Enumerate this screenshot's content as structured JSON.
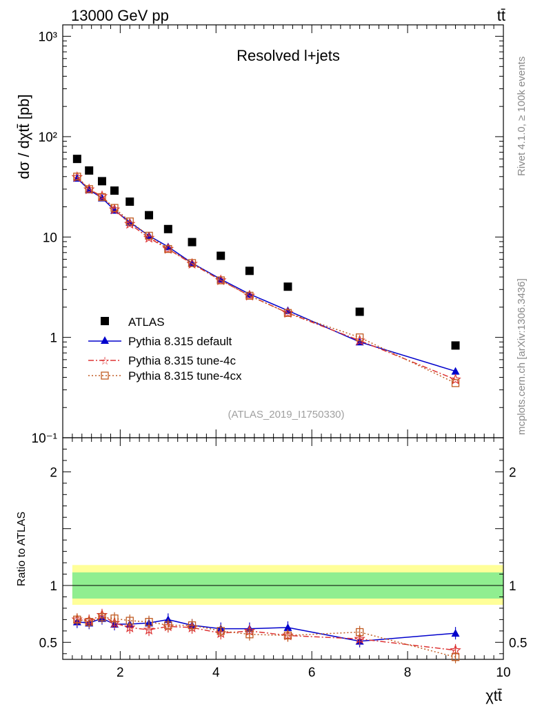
{
  "header": {
    "left": "13000 GeV pp",
    "right": "tt̄"
  },
  "side_labels": {
    "rivet": "Rivet 4.1.0, ≥ 100k events",
    "mcplots": "mcplots.cern.ch [arXiv:1306.3436]"
  },
  "chart_data": {
    "type": "scatter",
    "title": "Resolved l+jets",
    "analysis_id": "(ATLAS_2019_I1750330)",
    "ylabel": "dσ / dχtt̄ [pb]",
    "ratio_ylabel": "Ratio to ATLAS",
    "xlabel": "χtt̄",
    "xlim": [
      0.8,
      10
    ],
    "ylim": [
      0.1,
      1300
    ],
    "ratio_ylim": [
      0.35,
      2.3
    ],
    "x_ticks": [
      2,
      4,
      6,
      8,
      10
    ],
    "y_tick_labels": [
      "10⁻¹",
      "1",
      "10",
      "10²",
      "10³"
    ],
    "ratio_ticks": [
      0.5,
      1,
      2
    ],
    "x": [
      1.1,
      1.35,
      1.62,
      1.88,
      2.2,
      2.6,
      3.0,
      3.5,
      4.1,
      4.7,
      5.5,
      7.0,
      9.0
    ],
    "series": [
      {
        "name": "ATLAS",
        "color": "#000000",
        "marker": "square",
        "values": [
          60,
          46,
          36,
          29,
          22.5,
          16.5,
          12,
          8.9,
          6.5,
          4.6,
          3.2,
          1.8,
          0.83
        ]
      },
      {
        "name": "Pythia 8.315 default",
        "color": "#0000cc",
        "marker": "triangle",
        "line": "solid",
        "values": [
          38.5,
          29.5,
          24.5,
          18.5,
          14,
          10.3,
          8.0,
          5.5,
          3.8,
          2.7,
          1.85,
          0.9,
          0.46
        ],
        "ratio": [
          0.68,
          0.67,
          0.71,
          0.66,
          0.66,
          0.67,
          0.7,
          0.65,
          0.62,
          0.62,
          0.63,
          0.51,
          0.58
        ]
      },
      {
        "name": "Pythia 8.315 tune-4c",
        "color": "#dd3333",
        "marker": "star",
        "line": "dashdot",
        "values": [
          39.5,
          29.8,
          25.5,
          18.8,
          13.5,
          9.8,
          7.6,
          5.4,
          3.7,
          2.6,
          1.75,
          0.93,
          0.38
        ],
        "ratio": [
          0.7,
          0.69,
          0.74,
          0.67,
          0.63,
          0.61,
          0.64,
          0.63,
          0.58,
          0.6,
          0.56,
          0.53,
          0.43
        ]
      },
      {
        "name": "Pythia 8.315 tune-4cx",
        "color": "#c05a20",
        "marker": "open-square",
        "line": "dotted",
        "values": [
          40,
          30,
          25,
          19.5,
          14.3,
          10.3,
          7.6,
          5.5,
          3.7,
          2.6,
          1.75,
          1.0,
          0.35
        ],
        "ratio": [
          0.7,
          0.68,
          0.72,
          0.71,
          0.69,
          0.68,
          0.65,
          0.65,
          0.6,
          0.57,
          0.56,
          0.59,
          0.37
        ]
      }
    ],
    "ratio_band_inner": [
      0.885,
      1.115
    ],
    "ratio_band_outer": [
      0.83,
      1.18
    ],
    "band_colors": {
      "inner": "#90ee90",
      "outer": "#ffff99"
    }
  }
}
